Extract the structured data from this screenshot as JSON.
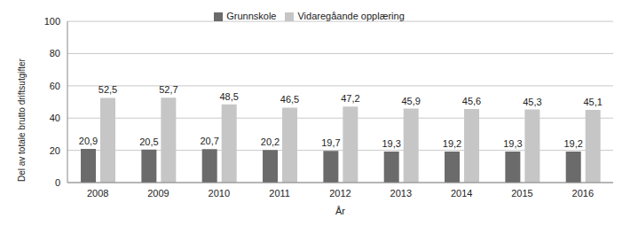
{
  "chart_data": {
    "type": "bar",
    "x_label": "År",
    "y_label": "Del av totale brutto driftsutgifter",
    "categories": [
      "2008",
      "2009",
      "2010",
      "2011",
      "2012",
      "2013",
      "2014",
      "2015",
      "2016"
    ],
    "series": [
      {
        "name": "Grunnskole",
        "color": "#6b6b6b",
        "values": [
          20.9,
          20.5,
          20.7,
          20.2,
          19.7,
          19.3,
          19.2,
          19.3,
          19.2
        ],
        "value_labels": [
          "20,9",
          "20,5",
          "20,7",
          "20,2",
          "19,7",
          "19,3",
          "19,2",
          "19,3",
          "19,2"
        ]
      },
      {
        "name": "Vidaregåande opplæring",
        "color": "#c6c6c6",
        "values": [
          52.5,
          52.7,
          48.5,
          46.5,
          47.2,
          45.9,
          45.6,
          45.3,
          45.1
        ],
        "value_labels": [
          "52,5",
          "52,7",
          "48,5",
          "46,5",
          "47,2",
          "45,9",
          "45,6",
          "45,3",
          "45,1"
        ]
      }
    ],
    "ylim": [
      0,
      100
    ],
    "yticks": [
      0,
      20,
      40,
      60,
      80,
      100
    ],
    "grid": true,
    "legend": "top",
    "data_labels": true
  }
}
